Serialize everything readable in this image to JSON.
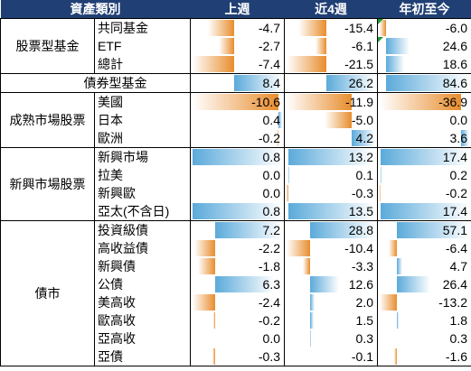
{
  "colors": {
    "header_bg": "#203F74",
    "header_text": "#FFFFFF",
    "positive_bar": "#5BAADA",
    "negative_bar": "#E88D2D",
    "indicator": "#1F9A3A",
    "border": "#000000"
  },
  "chart_data": {
    "type": "table",
    "header_label": "資產類別",
    "columns": [
      "上週",
      "近4週",
      "年初至今"
    ],
    "groups": [
      {
        "label": "股票型基金",
        "rows": [
          {
            "label": "共同基金",
            "values": [
              -4.7,
              -15.4,
              -6.0
            ],
            "indicators": [
              false,
              false,
              true
            ]
          },
          {
            "label": "ETF",
            "values": [
              -2.7,
              -6.1,
              24.6
            ],
            "indicators": [
              false,
              false,
              true
            ]
          },
          {
            "label": "總計",
            "values": [
              -7.4,
              -21.5,
              18.6
            ]
          }
        ]
      },
      {
        "label": "債券型基金",
        "rows": [
          {
            "values": [
              8.4,
              26.2,
              84.6
            ]
          }
        ]
      },
      {
        "label": "成熟市場股票",
        "rows": [
          {
            "label": "美國",
            "values": [
              -10.6,
              -11.9,
              -36.9
            ]
          },
          {
            "label": "日本",
            "values": [
              0.4,
              -5.0,
              0.0
            ]
          },
          {
            "label": "歐洲",
            "values": [
              -0.2,
              4.2,
              3.6
            ]
          }
        ]
      },
      {
        "label": "新興市場股票",
        "rows": [
          {
            "label": "新興市場",
            "values": [
              0.8,
              13.2,
              17.4
            ]
          },
          {
            "label": "拉美",
            "values": [
              0.0,
              0.1,
              0.2
            ]
          },
          {
            "label": "新興歐",
            "values": [
              0.0,
              -0.3,
              -0.2
            ]
          },
          {
            "label": "亞太(不含日)",
            "values": [
              0.8,
              13.5,
              17.4
            ]
          }
        ]
      },
      {
        "label": "債市",
        "rows": [
          {
            "label": "投資級債",
            "values": [
              7.2,
              28.8,
              57.1
            ]
          },
          {
            "label": "高收益債",
            "values": [
              -2.2,
              -10.4,
              -6.4
            ]
          },
          {
            "label": "新興債",
            "values": [
              -1.8,
              -3.3,
              4.7
            ]
          },
          {
            "label": "公債",
            "values": [
              6.3,
              12.6,
              26.4
            ]
          },
          {
            "label": "美高收",
            "values": [
              -2.4,
              2.0,
              -13.2
            ]
          },
          {
            "label": "歐高收",
            "values": [
              -0.2,
              1.5,
              1.8
            ]
          },
          {
            "label": "亞高收",
            "values": [
              0.0,
              0.3,
              0.3
            ]
          },
          {
            "label": "亞債",
            "values": [
              -0.3,
              -0.1,
              -1.6
            ]
          }
        ]
      }
    ]
  }
}
